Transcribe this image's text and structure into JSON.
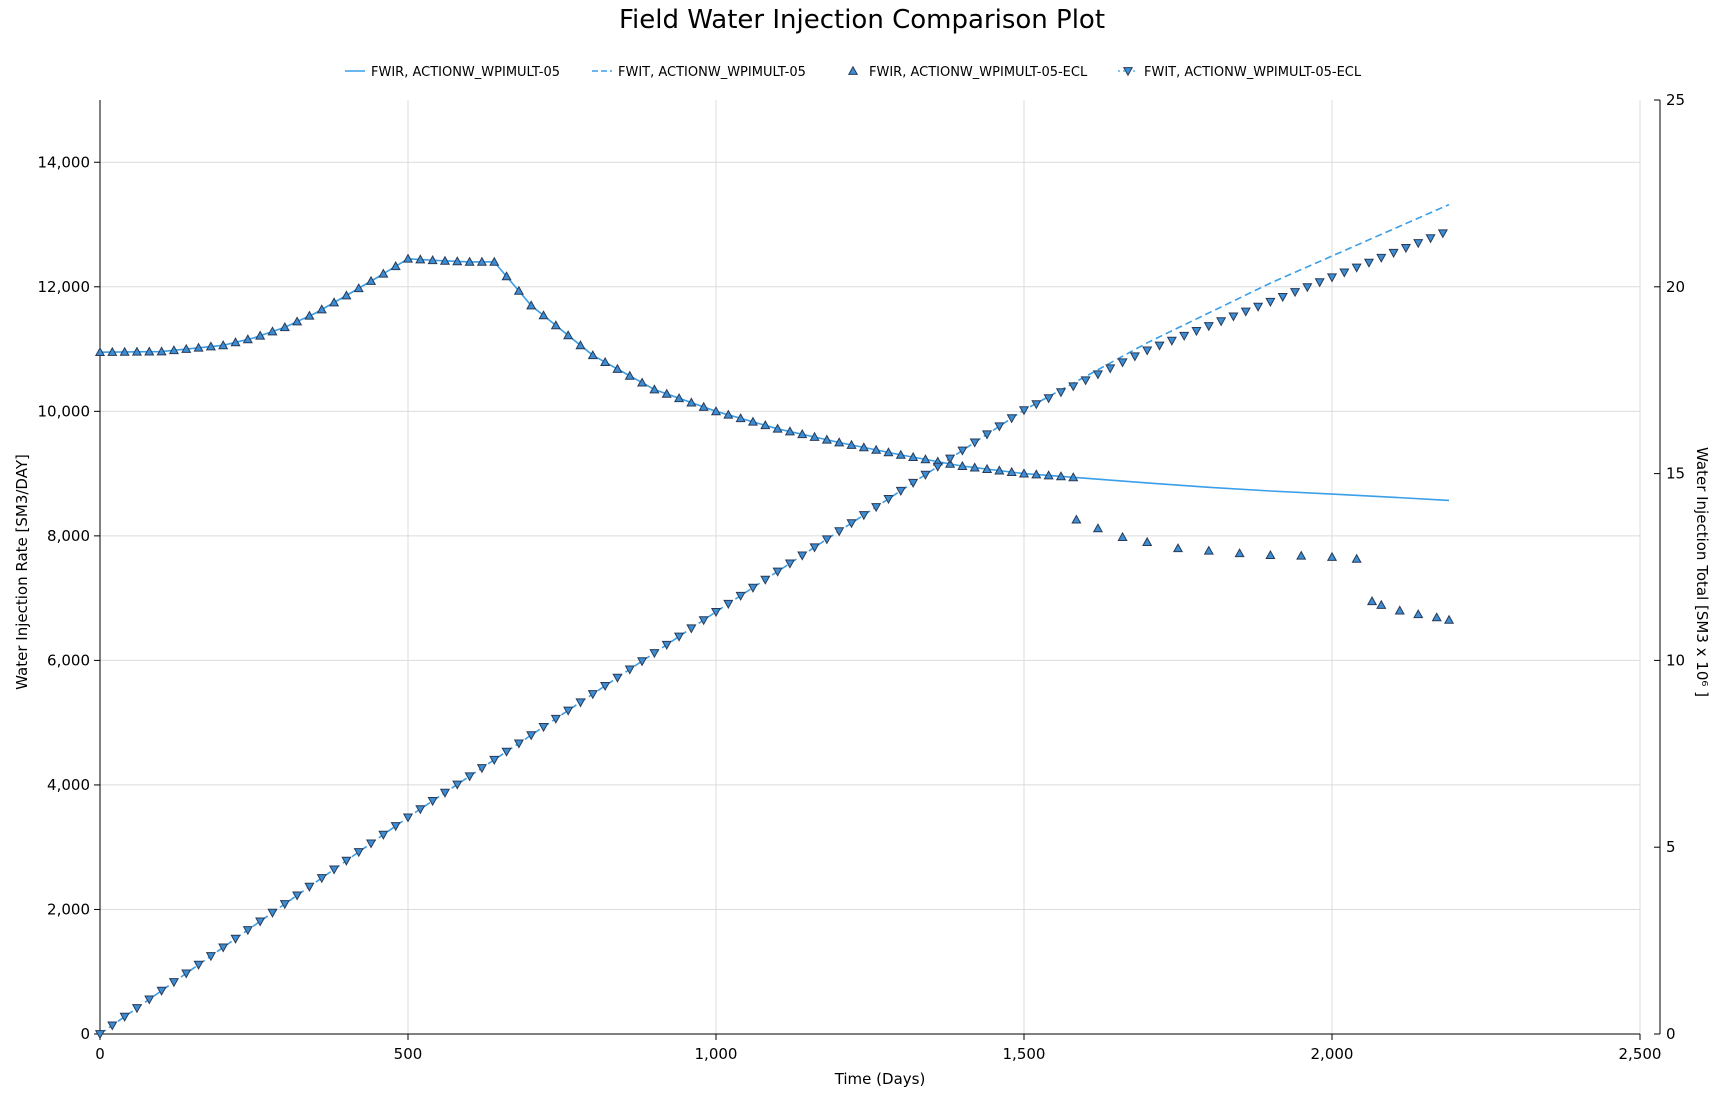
{
  "chart_data": {
    "type": "line",
    "title": "Field Water Injection Comparison Plot",
    "xlabel": "Time (Days)",
    "ylabel": "Water Injection Rate [SM3/DAY]",
    "y2label": "Water Injection Total [SM3 x 10⁶ ]",
    "xlim": [
      0,
      2500
    ],
    "ylim": [
      0,
      15000
    ],
    "y2lim": [
      0,
      25
    ],
    "x_ticks": [
      0,
      500,
      1000,
      1500,
      2000,
      2500
    ],
    "x_tick_labels": [
      "0",
      "500",
      "1,000",
      "1,500",
      "2,000",
      "2,500"
    ],
    "y_ticks": [
      0,
      2000,
      4000,
      6000,
      8000,
      10000,
      12000,
      14000
    ],
    "y_tick_labels": [
      "0",
      "2,000",
      "4,000",
      "6,000",
      "8,000",
      "10,000",
      "12,000",
      "14,000"
    ],
    "y2_ticks": [
      0,
      5,
      10,
      15,
      20,
      25
    ],
    "y2_tick_labels": [
      "0",
      "5",
      "10",
      "15",
      "20",
      "25"
    ],
    "grid": true,
    "legend_position": "top-center",
    "colors": {
      "line": "#3a9ee8",
      "marker_fill": "#3b8ed6",
      "marker_edge": "#2a3a55"
    },
    "series": [
      {
        "name": "FWIR, ACTIONW_WPIMULT-05",
        "axis": "left",
        "style": "solid",
        "x": [
          0,
          100,
          200,
          250,
          300,
          350,
          400,
          450,
          500,
          550,
          600,
          640,
          700,
          800,
          900,
          1000,
          1100,
          1200,
          1300,
          1400,
          1500,
          1580,
          1700,
          1800,
          1900,
          2000,
          2100,
          2190
        ],
        "y": [
          10950,
          10960,
          11060,
          11180,
          11350,
          11580,
          11860,
          12150,
          12450,
          12420,
          12400,
          12400,
          11700,
          10900,
          10350,
          10000,
          9720,
          9500,
          9300,
          9120,
          9000,
          8940,
          8850,
          8780,
          8720,
          8670,
          8620,
          8570
        ]
      },
      {
        "name": "FWIT, ACTIONW_WPIMULT-05",
        "axis": "right",
        "style": "dashed",
        "x": [
          0,
          500,
          1000,
          1500,
          1700,
          1900,
          2190
        ],
        "y": [
          0,
          5.8,
          11.3,
          16.7,
          18.5,
          20.1,
          22.2
        ]
      },
      {
        "name": "FWIR, ACTIONW_WPIMULT-05-ECL",
        "axis": "left",
        "marker": "triangle-up",
        "x": [
          0,
          100,
          200,
          250,
          300,
          350,
          400,
          450,
          500,
          550,
          600,
          640,
          700,
          800,
          900,
          1000,
          1100,
          1200,
          1300,
          1400,
          1500,
          1580,
          1585,
          1620,
          1660,
          1700,
          1750,
          1800,
          1850,
          1900,
          1950,
          2000,
          2040,
          2065,
          2080,
          2110,
          2140,
          2170,
          2190
        ],
        "y": [
          10950,
          10960,
          11060,
          11180,
          11350,
          11580,
          11860,
          12150,
          12450,
          12420,
          12400,
          12400,
          11700,
          10900,
          10350,
          10000,
          9720,
          9500,
          9300,
          9120,
          9000,
          8940,
          8260,
          8120,
          7980,
          7900,
          7800,
          7760,
          7720,
          7690,
          7680,
          7660,
          7630,
          6950,
          6890,
          6800,
          6740,
          6690,
          6650
        ]
      },
      {
        "name": "FWIT, ACTIONW_WPIMULT-05-ECL",
        "axis": "right",
        "marker": "triangle-down",
        "style": "dotted",
        "x": [
          0,
          500,
          1000,
          1500,
          1700,
          1900,
          2190
        ],
        "y": [
          0,
          5.8,
          11.3,
          16.7,
          18.3,
          19.6,
          21.5
        ]
      }
    ]
  }
}
